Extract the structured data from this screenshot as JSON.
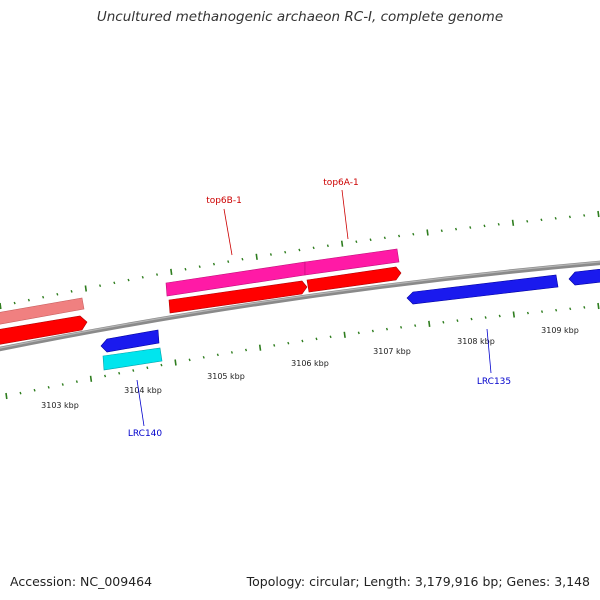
{
  "title": "Uncultured methanogenic archaeon RC-I, complete genome",
  "footer": {
    "accession": "Accession: NC_009464",
    "summary": "Topology: circular; Length: 3,179,916 bp; Genes: 3,148"
  },
  "colors": {
    "backbone": "#8a8a8a",
    "tick": "#2e7d1e",
    "forward_cds": "#ff0000",
    "forward_cds_light": "#f08080",
    "forward_rna": "#ff1aa6",
    "reverse_cds": "#1a1aee",
    "reverse_rna": "#00e5ee",
    "label_forward": "#cc0000",
    "label_reverse": "#0000cc"
  },
  "ticks": {
    "unit": "kbp",
    "labels": [
      "3103 kbp",
      "3104 kbp",
      "3105 kbp",
      "3106 kbp",
      "3107 kbp",
      "3108 kbp",
      "3109 kbp"
    ]
  },
  "genes": {
    "labeled": [
      {
        "label": "top6B-1",
        "strand": "forward"
      },
      {
        "label": "top6A-1",
        "strand": "forward"
      },
      {
        "label": "LRC140",
        "strand": "reverse"
      },
      {
        "label": "LRC135",
        "strand": "reverse"
      }
    ]
  }
}
